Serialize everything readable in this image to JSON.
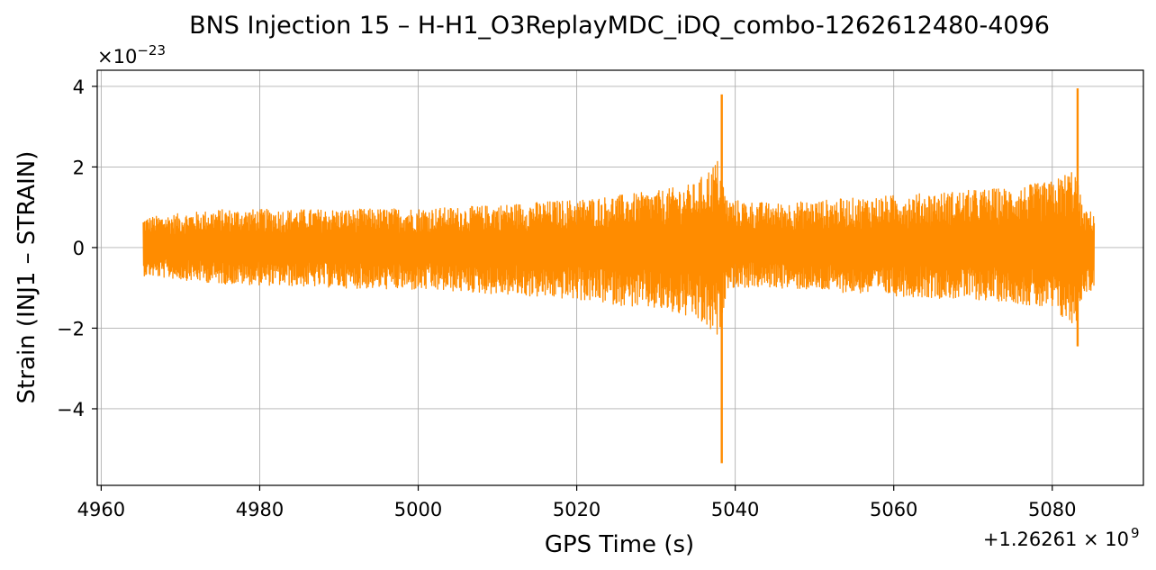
{
  "chart_data": {
    "type": "line",
    "title": "BNS Injection 15 – H-H1_O3ReplayMDC_iDQ_combo-1262612480-4096",
    "xlabel": "GPS Time (s)",
    "ylabel": "Strain (INJ1 – STRAIN)",
    "y_multiplier_label": "×10",
    "y_multiplier_exp": "−23",
    "x_offset_label": "+1.26261 × 10",
    "x_offset_exp": "9",
    "xlim": [
      4959.5,
      5091.5
    ],
    "ylim": [
      -5.9,
      4.4
    ],
    "x_ticks": [
      4960,
      4980,
      5000,
      5020,
      5040,
      5060,
      5080
    ],
    "x_tick_labels": [
      "4960",
      "4980",
      "5000",
      "5020",
      "5040",
      "5060",
      "5080"
    ],
    "y_ticks": [
      -4,
      -2,
      0,
      2,
      4
    ],
    "y_tick_labels": [
      "−4",
      "−2",
      "0",
      "2",
      "4"
    ],
    "grid": true,
    "line_color": "#ff8c00",
    "series": [
      {
        "x_range": [
          4965.3,
          5085.3
        ],
        "peaks": [
          {
            "x": 5038.3,
            "min": -5.35,
            "max": 3.8
          },
          {
            "x": 5083.2,
            "min": -2.45,
            "max": 3.95
          }
        ],
        "envelope": {
          "x": [
            4965.3,
            4975,
            4990,
            5005,
            5020,
            5030,
            5035,
            5037.8,
            5039,
            5045,
            5060,
            5075,
            5080,
            5082.8,
            5084,
            5085.3
          ],
          "upper": [
            0.75,
            0.95,
            0.95,
            1.0,
            1.2,
            1.4,
            1.6,
            2.2,
            1.2,
            1.1,
            1.3,
            1.5,
            1.65,
            2.0,
            0.9,
            0.9
          ],
          "lower": [
            -0.7,
            -0.9,
            -1.0,
            -1.1,
            -1.3,
            -1.55,
            -1.8,
            -2.3,
            -1.0,
            -1.0,
            -1.2,
            -1.35,
            -1.6,
            -2.0,
            -1.1,
            -1.1
          ]
        }
      }
    ]
  }
}
